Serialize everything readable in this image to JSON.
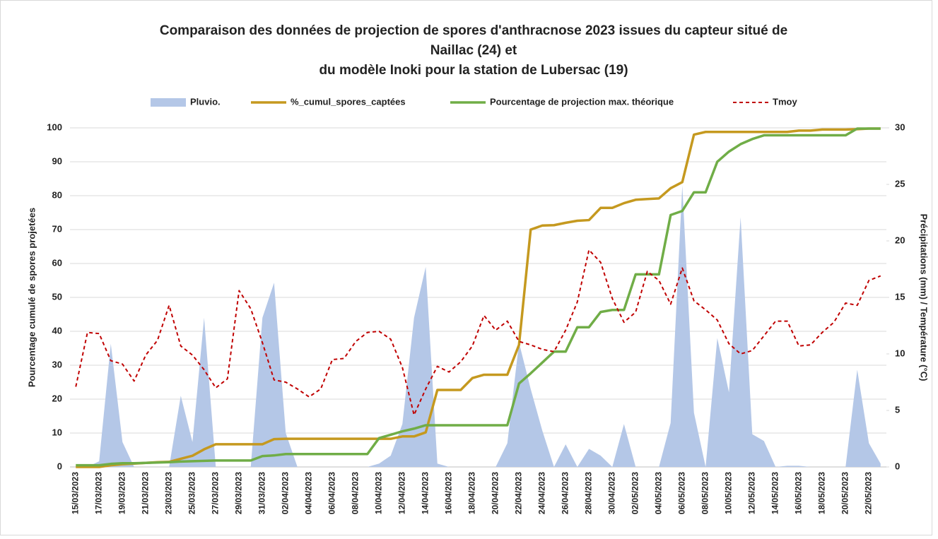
{
  "chart_data": {
    "type": "line",
    "title": [
      "Comparaison des données de projection de spores d'anthracnose 2023  issues du capteur situé de",
      "Naillac (24) et",
      "du modèle Inoki pour la station de Lubersac (19)"
    ],
    "ylabel": "Pourcentage cumulé de spores projetées",
    "y2label": "Précipitations (mm) / Température (°C)",
    "categories": [
      "15/03/2023",
      null,
      "17/03/2023",
      null,
      "19/03/2023",
      null,
      "21/03/2023",
      null,
      "23/03/2023",
      null,
      "25/03/2023",
      null,
      "27/03/2023",
      null,
      "29/03/2023",
      null,
      "31/03/2023",
      null,
      "02/04/2023",
      null,
      "04/04/2023",
      null,
      "06/04/2023",
      null,
      "08/04/2023",
      null,
      "10/04/2023",
      null,
      "12/04/2023",
      null,
      "14/04/2023",
      null,
      "16/04/2023",
      null,
      "18/04/2023",
      null,
      "20/04/2023",
      null,
      "22/04/2023",
      null,
      "24/04/2023",
      null,
      "26/04/2023",
      null,
      "28/04/2023",
      null,
      "30/04/2023",
      null,
      "02/05/2023",
      null,
      "04/05/2023",
      null,
      "06/05/2023",
      null,
      "08/05/2023",
      null,
      "10/05/2023",
      null,
      "12/05/2023",
      null,
      "14/05/2023",
      null,
      "16/05/2023",
      null,
      "18/05/2023",
      null,
      "20/05/2023",
      null,
      "22/05/2023",
      null
    ],
    "ylim": [
      0,
      100
    ],
    "yticks": [
      0,
      10,
      20,
      30,
      40,
      50,
      60,
      70,
      80,
      90,
      100
    ],
    "y2lim": [
      0,
      30
    ],
    "y2ticks": [
      0,
      5,
      10,
      15,
      20,
      25,
      30
    ],
    "grid": true,
    "legend": "top",
    "series": [
      {
        "name": "Pluvio.",
        "type": "area",
        "axis": "y2",
        "color": "#b4c7e7",
        "values": [
          0,
          0,
          0.5,
          10.9,
          2.2,
          0,
          0,
          0,
          0,
          6.3,
          2.2,
          13.2,
          0,
          0,
          0,
          0,
          13.2,
          16.3,
          3,
          0,
          0,
          0,
          0,
          0,
          0,
          0,
          0.3,
          1.0,
          3.8,
          13.2,
          17.7,
          0.3,
          0,
          0,
          0,
          0,
          0,
          2.1,
          11.0,
          6.9,
          3.2,
          0,
          2.0,
          0,
          1.6,
          1.0,
          0,
          3.8,
          0,
          0,
          0,
          3.9,
          24.9,
          4.8,
          0,
          11.4,
          6.6,
          22.1,
          2.9,
          2.3,
          0,
          0.1,
          0.1,
          0,
          0,
          0,
          0,
          8.6,
          2.1,
          0.3
        ]
      },
      {
        "name": "%_cumul_spores_captées",
        "type": "line",
        "axis": "y",
        "color": "#c5991f",
        "values": [
          0,
          0,
          0,
          0.5,
          0.8,
          1,
          1.2,
          1.4,
          1.5,
          2.4,
          3.3,
          5.2,
          6.7,
          6.7,
          6.7,
          6.7,
          6.7,
          8.2,
          8.3,
          8.3,
          8.3,
          8.3,
          8.3,
          8.3,
          8.3,
          8.3,
          8.3,
          8.3,
          9,
          9,
          10.2,
          22.7,
          22.7,
          22.7,
          26.2,
          27.2,
          27.2,
          27.2,
          36,
          70,
          71.2,
          71.3,
          72,
          72.6,
          72.8,
          76.4,
          76.4,
          77.8,
          78.8,
          79,
          79.2,
          82.2,
          84,
          98,
          98.8,
          98.8,
          98.8,
          98.8,
          98.8,
          98.8,
          98.8,
          98.8,
          99.2,
          99.2,
          99.5,
          99.5,
          99.5,
          99.6,
          99.8,
          99.8
        ]
      },
      {
        "name": "Pourcentage de projection max. théorique",
        "type": "line",
        "axis": "y",
        "color": "#70ad47",
        "values": [
          0.5,
          0.5,
          0.5,
          0.9,
          1.1,
          1.1,
          1.2,
          1.3,
          1.4,
          1.6,
          1.7,
          1.8,
          1.9,
          1.9,
          1.9,
          1.9,
          3.2,
          3.4,
          3.8,
          3.8,
          3.8,
          3.8,
          3.8,
          3.8,
          3.8,
          3.8,
          8.5,
          9.5,
          10.5,
          11.3,
          12.3,
          12.3,
          12.3,
          12.3,
          12.3,
          12.3,
          12.3,
          12.3,
          24.6,
          27.6,
          30.8,
          34,
          34,
          41.2,
          41.2,
          45.7,
          46.3,
          46.3,
          56.8,
          56.8,
          56.8,
          74.3,
          75.5,
          81,
          81,
          90,
          93,
          95.2,
          96.7,
          97.8,
          97.8,
          97.8,
          97.8,
          97.8,
          97.8,
          97.8,
          97.8,
          99.8,
          99.8,
          99.8
        ]
      },
      {
        "name": "Tmoy",
        "type": "line",
        "axis": "y2",
        "dash": true,
        "color": "#c00000",
        "values": [
          7.1,
          11.9,
          11.8,
          9.4,
          9.1,
          7.6,
          9.9,
          11.2,
          14.3,
          10.7,
          9.9,
          8.6,
          7.0,
          7.8,
          15.6,
          14.0,
          11.0,
          7.7,
          7.5,
          6.9,
          6.2,
          6.9,
          9.5,
          9.6,
          11.1,
          11.9,
          12.0,
          11.3,
          8.8,
          4.6,
          6.9,
          8.9,
          8.4,
          9.3,
          10.7,
          13.4,
          12.1,
          12.9,
          11.1,
          10.8,
          10.4,
          10.2,
          12.1,
          14.6,
          19.2,
          18.1,
          14.9,
          12.8,
          13.7,
          17.3,
          16.5,
          14.4,
          17.6,
          14.7,
          13.9,
          13.0,
          10.9,
          10.0,
          10.3,
          11.6,
          12.9,
          12.9,
          10.7,
          10.8,
          11.9,
          12.8,
          14.5,
          14.3,
          16.5,
          16.9
        ]
      }
    ]
  }
}
